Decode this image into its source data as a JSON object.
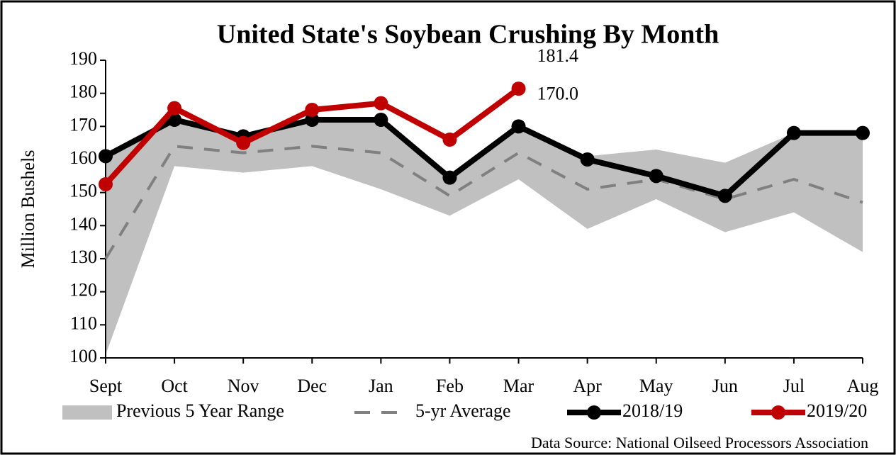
{
  "chart_data": {
    "type": "line",
    "title": "United State's Soybean Crushing By Month",
    "y_label": "Million Bushels",
    "source": "Data Source: National Oilseed Processors Association",
    "categories": [
      "Sept",
      "Oct",
      "Nov",
      "Dec",
      "Jan",
      "Feb",
      "Mar",
      "Apr",
      "May",
      "Jun",
      "Jul",
      "Aug"
    ],
    "ylim": [
      100,
      190
    ],
    "yticks": [
      100,
      110,
      120,
      130,
      140,
      150,
      160,
      170,
      180,
      190
    ],
    "range": {
      "name": "Previous 5 Year Range",
      "color": "#c0c0c0",
      "low": [
        101,
        158,
        156,
        158,
        151,
        143,
        154,
        139,
        148,
        138,
        144,
        132
      ],
      "high": [
        160,
        172,
        167,
        172,
        172,
        155,
        170,
        161,
        163,
        159,
        168,
        168
      ]
    },
    "series": [
      {
        "name": "5-yr Average",
        "color": "#808080",
        "dashed": true,
        "markers": false,
        "values": [
          130,
          164,
          162,
          164,
          162,
          149,
          162,
          151,
          154,
          148,
          154,
          147
        ]
      },
      {
        "name": "2018/19",
        "color": "#000000",
        "dashed": false,
        "markers": true,
        "values": [
          161,
          172,
          167,
          172,
          172,
          154.5,
          170.0,
          160,
          155,
          149,
          168,
          168
        ],
        "value_labels": [
          null,
          null,
          null,
          null,
          null,
          null,
          "170.0",
          null,
          null,
          null,
          null,
          null
        ]
      },
      {
        "name": "2019/20",
        "color": "#c00000",
        "dashed": false,
        "markers": true,
        "values": [
          152.5,
          175.5,
          165,
          175,
          177,
          166,
          181.4,
          null,
          null,
          null,
          null,
          null
        ],
        "value_labels": [
          null,
          null,
          null,
          null,
          null,
          null,
          "181.4",
          null,
          null,
          null,
          null,
          null
        ]
      }
    ]
  }
}
